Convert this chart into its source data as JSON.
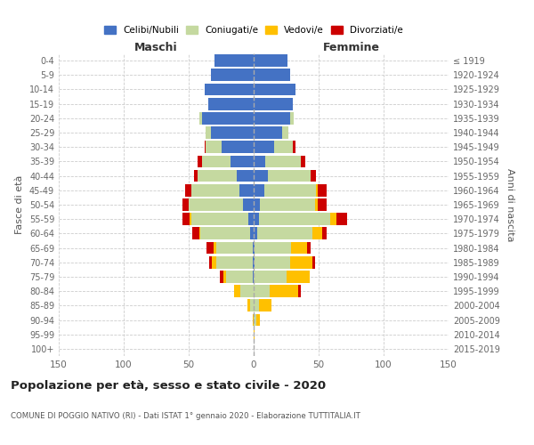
{
  "age_groups": [
    "0-4",
    "5-9",
    "10-14",
    "15-19",
    "20-24",
    "25-29",
    "30-34",
    "35-39",
    "40-44",
    "45-49",
    "50-54",
    "55-59",
    "60-64",
    "65-69",
    "70-74",
    "75-79",
    "80-84",
    "85-89",
    "90-94",
    "95-99",
    "100+"
  ],
  "birth_years": [
    "2015-2019",
    "2010-2014",
    "2005-2009",
    "2000-2004",
    "1995-1999",
    "1990-1994",
    "1985-1989",
    "1980-1984",
    "1975-1979",
    "1970-1974",
    "1965-1969",
    "1960-1964",
    "1955-1959",
    "1950-1954",
    "1945-1949",
    "1940-1944",
    "1935-1939",
    "1930-1934",
    "1925-1929",
    "1920-1924",
    "≤ 1919"
  ],
  "male": {
    "celibi": [
      30,
      33,
      38,
      35,
      40,
      33,
      25,
      18,
      13,
      11,
      8,
      4,
      3,
      1,
      1,
      1,
      0,
      0,
      0,
      0,
      0
    ],
    "coniugati": [
      0,
      0,
      0,
      0,
      2,
      4,
      12,
      22,
      30,
      37,
      42,
      44,
      38,
      28,
      28,
      20,
      10,
      3,
      0,
      0,
      0
    ],
    "vedovi": [
      0,
      0,
      0,
      0,
      0,
      0,
      0,
      0,
      0,
      0,
      0,
      1,
      1,
      2,
      3,
      2,
      5,
      2,
      1,
      0,
      0
    ],
    "divorziati": [
      0,
      0,
      0,
      0,
      0,
      0,
      1,
      3,
      3,
      5,
      5,
      6,
      5,
      5,
      2,
      3,
      0,
      0,
      0,
      0,
      0
    ]
  },
  "female": {
    "nubili": [
      26,
      28,
      32,
      30,
      28,
      22,
      16,
      9,
      11,
      8,
      5,
      4,
      3,
      1,
      1,
      0,
      0,
      0,
      0,
      0,
      0
    ],
    "coniugate": [
      0,
      0,
      0,
      0,
      3,
      5,
      14,
      27,
      33,
      40,
      42,
      55,
      42,
      28,
      27,
      25,
      12,
      4,
      2,
      0,
      0
    ],
    "vedove": [
      0,
      0,
      0,
      0,
      0,
      0,
      0,
      0,
      0,
      1,
      2,
      5,
      8,
      12,
      17,
      18,
      22,
      10,
      3,
      1,
      0
    ],
    "divorziate": [
      0,
      0,
      0,
      0,
      0,
      0,
      2,
      4,
      4,
      7,
      7,
      8,
      3,
      3,
      2,
      0,
      2,
      0,
      0,
      0,
      0
    ]
  },
  "color_celibi": "#4472c4",
  "color_coniugati": "#c5d9a0",
  "color_vedovi": "#ffc000",
  "color_divorziati": "#cc0000",
  "xlim": 150,
  "title": "Popolazione per età, sesso e stato civile - 2020",
  "subtitle": "COMUNE DI POGGIO NATIVO (RI) - Dati ISTAT 1° gennaio 2020 - Elaborazione TUTTITALIA.IT",
  "ylabel_left": "Fasce di età",
  "ylabel_right": "Anni di nascita",
  "xlabel_male": "Maschi",
  "xlabel_female": "Femmine"
}
